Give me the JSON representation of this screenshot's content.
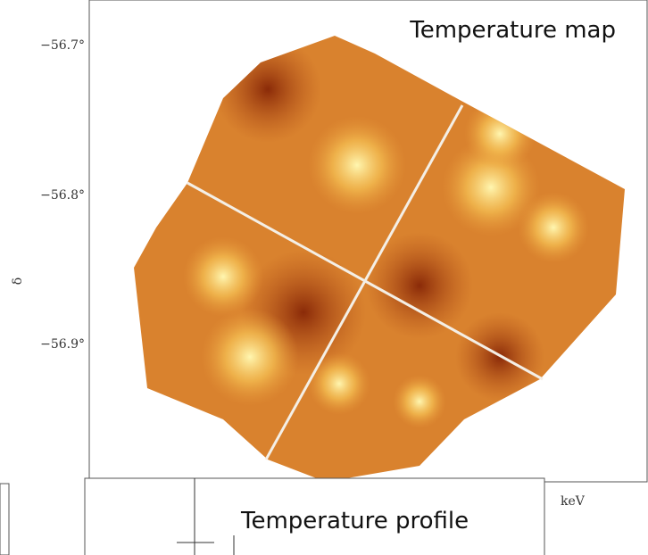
{
  "map_panel": {
    "title": "Temperature map",
    "axis_label": "δ",
    "yticks": [
      "−56.7°",
      "−56.8°",
      "−56.9°"
    ]
  },
  "profile_panel": {
    "title": "Temperature profile",
    "unit_label": "keV"
  }
}
